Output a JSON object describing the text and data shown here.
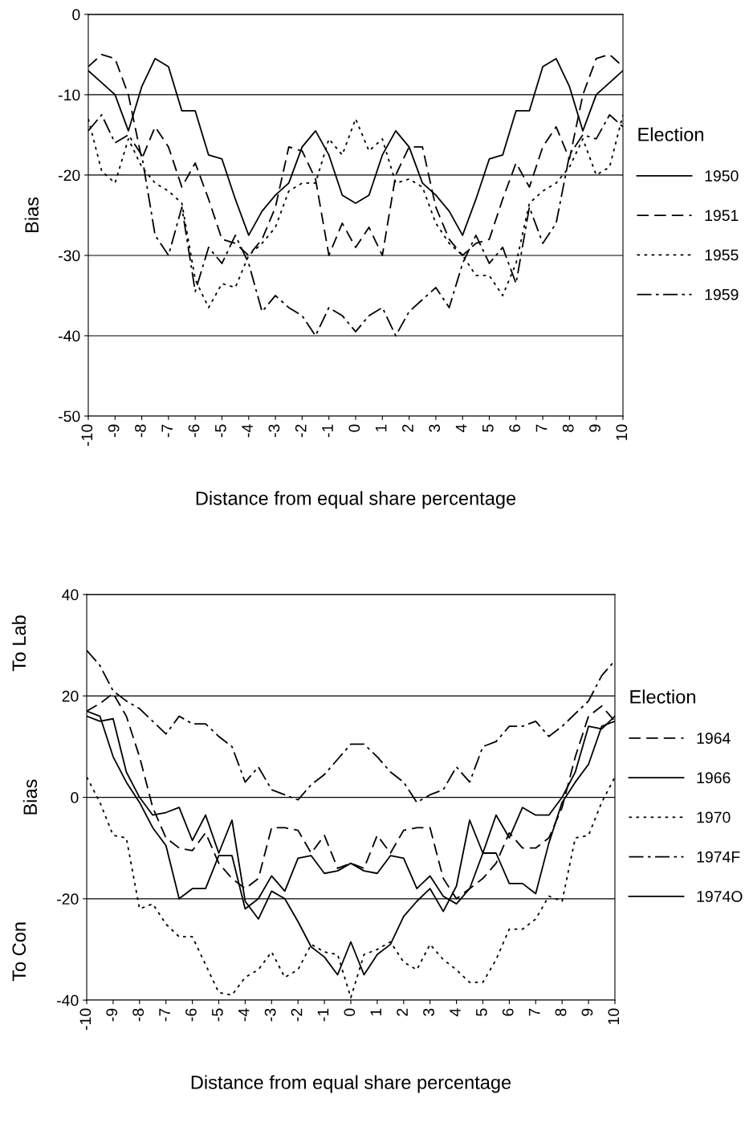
{
  "chart_data": [
    {
      "type": "line",
      "ylabel": "Bias",
      "xlabel": "Distance from equal share percentage",
      "legend_title": "Election",
      "legend": "right",
      "grid": "y",
      "x": [
        -10,
        -9.5,
        -9,
        -8.5,
        -8,
        -7.5,
        -7,
        -6.5,
        -6,
        -5.5,
        -5,
        -4.5,
        -4,
        -3.5,
        -3,
        -2.5,
        -2,
        -1.5,
        -1,
        -0.5,
        0,
        0.5,
        1,
        1.5,
        2,
        2.5,
        3,
        3.5,
        4,
        4.5,
        5,
        5.5,
        6,
        6.5,
        7,
        7.5,
        8,
        8.5,
        9,
        9.5,
        10
      ],
      "xlim": [
        -10,
        10
      ],
      "xticks": [
        -10,
        -9,
        -8,
        -7,
        -6,
        -5,
        -4,
        -3,
        -2,
        -1,
        0,
        1,
        2,
        3,
        4,
        5,
        6,
        7,
        8,
        9,
        10
      ],
      "ylim": [
        -50,
        0
      ],
      "yticks": [
        -50,
        -40,
        -30,
        -20,
        -10,
        0
      ],
      "series": [
        {
          "name": "1950",
          "color": "#000000",
          "line_style": "solid",
          "values": [
            -7,
            -8.5,
            -10,
            -14.5,
            -9,
            -5.5,
            -6.5,
            -12,
            -12,
            -17.5,
            -18,
            -23,
            -27.5,
            -24.5,
            -22.5,
            -21,
            -16.5,
            -14.5,
            -17.5,
            -22.5,
            -23.5,
            -22.5,
            -17.5,
            -14.5,
            -16.5,
            -21,
            -22.5,
            -24.5,
            -27.5,
            -23,
            -18,
            -17.5,
            -12,
            -12,
            -6.5,
            -5.5,
            -9,
            -14.5,
            -10,
            -8.5,
            -7
          ]
        },
        {
          "name": "1951",
          "color": "#000000",
          "line_style": "dashed",
          "values": [
            -6.5,
            -5,
            -5.5,
            -10,
            -18,
            -14,
            -16.5,
            -21.5,
            -18.5,
            -23,
            -28,
            -28.5,
            -30,
            -28,
            -24,
            -16.5,
            -17,
            -20.5,
            -30,
            -26,
            -29,
            -26.5,
            -30,
            -20,
            -16.5,
            -16.5,
            -24,
            -28,
            -30,
            -28.5,
            -28,
            -23,
            -18.5,
            -21.5,
            -16.5,
            -14,
            -18,
            -10,
            -5.5,
            -5,
            -6.5
          ]
        },
        {
          "name": "1955",
          "color": "#000000",
          "line_style": "dotted",
          "values": [
            -13,
            -19.5,
            -21,
            -15.5,
            -19,
            -21,
            -22,
            -23.5,
            -33,
            -36.5,
            -33.5,
            -34,
            -30,
            -28.5,
            -26.5,
            -22,
            -21,
            -21,
            -15.5,
            -17.5,
            -13,
            -17,
            -15.5,
            -21,
            -20.5,
            -21.5,
            -26,
            -28.5,
            -30,
            -32.5,
            -32.5,
            -35,
            -31,
            -23.5,
            -22,
            -21,
            -19,
            -15.5,
            -20,
            -19,
            -12.5
          ]
        },
        {
          "name": "1959",
          "color": "#000000",
          "line_style": "dashdot",
          "values": [
            -14.5,
            -12.5,
            -16,
            -15,
            -17.5,
            -27.5,
            -30,
            -24,
            -34.5,
            -29,
            -31,
            -27.5,
            -31,
            -37,
            -35,
            -36.5,
            -37.5,
            -40,
            -36.5,
            -37.5,
            -39.5,
            -37.5,
            -36.5,
            -40,
            -37,
            -35.5,
            -34,
            -36.5,
            -31,
            -27.5,
            -31,
            -29,
            -33.5,
            -24,
            -28.5,
            -26,
            -17.5,
            -15,
            -15.5,
            -12.5,
            -14
          ]
        }
      ]
    },
    {
      "type": "line",
      "ylabel": "Bias",
      "xlabel": "Distance from equal share percentage",
      "legend_title": "Election",
      "legend": "right",
      "grid": "y",
      "annotations": [
        "To Lab",
        "To Con"
      ],
      "x": [
        -10,
        -9.5,
        -9,
        -8.5,
        -8,
        -7.5,
        -7,
        -6.5,
        -6,
        -5.5,
        -5,
        -4.5,
        -4,
        -3.5,
        -3,
        -2.5,
        -2,
        -1.5,
        -1,
        -0.5,
        0,
        0.5,
        1,
        1.5,
        2,
        2.5,
        3,
        3.5,
        4,
        4.5,
        5,
        5.5,
        6,
        6.5,
        7,
        7.5,
        8,
        8.5,
        9,
        9.5,
        10
      ],
      "xlim": [
        -10,
        10
      ],
      "xticks": [
        -10,
        -9,
        -8,
        -7,
        -6,
        -5,
        -4,
        -3,
        -2,
        -1,
        0,
        1,
        2,
        3,
        4,
        5,
        6,
        7,
        8,
        9,
        10
      ],
      "ylim": [
        -40,
        40
      ],
      "yticks": [
        -40,
        -20,
        0,
        20,
        40
      ],
      "series": [
        {
          "name": "1964",
          "color": "#000000",
          "line_style": "dashed",
          "values": [
            17,
            18.5,
            20.5,
            16,
            8,
            -2,
            -8,
            -10,
            -10.5,
            -7,
            -13,
            -16,
            -18,
            -16,
            -6,
            -6,
            -6.5,
            -11,
            -7.5,
            -14,
            -13,
            -14,
            -7.5,
            -11,
            -6.5,
            -6,
            -6,
            -16,
            -20,
            -18,
            -16,
            -13,
            -7,
            -10,
            -10,
            -8,
            -2,
            8,
            16,
            18,
            15
          ]
        },
        {
          "name": "1966",
          "color": "#000000",
          "line_style": "solid",
          "values": [
            17,
            16,
            8,
            3,
            -1,
            -6,
            -9.5,
            -20,
            -18,
            -18,
            -11.5,
            -11.5,
            -22,
            -20,
            -15.5,
            -18.5,
            -12,
            -11.5,
            -15,
            -14.5,
            -13,
            -14.5,
            -15,
            -11.5,
            -12,
            -18,
            -15.5,
            -19.5,
            -21,
            -18,
            -11,
            -11,
            -17,
            -17,
            -19,
            -9,
            -1,
            3,
            6.5,
            14,
            15
          ]
        },
        {
          "name": "1970",
          "color": "#000000",
          "line_style": "dotted",
          "values": [
            4,
            -1,
            -7.5,
            -8,
            -22,
            -21,
            -25,
            -27.5,
            -27.5,
            -33,
            -38.5,
            -39,
            -35.5,
            -34,
            -30.5,
            -35.5,
            -34,
            -29,
            -30.5,
            -31,
            -39.5,
            -31,
            -30,
            -28.5,
            -32.5,
            -34,
            -29,
            -32,
            -34,
            -36.5,
            -36.5,
            -32,
            -26,
            -26,
            -24,
            -19.5,
            -20.5,
            -8,
            -7.5,
            -1,
            4
          ]
        },
        {
          "name": "1974F",
          "color": "#000000",
          "line_style": "dashdot",
          "values": [
            29,
            26,
            21,
            19,
            17.5,
            15,
            12.5,
            16,
            14.5,
            14.5,
            12,
            10,
            3,
            6,
            1.5,
            0.5,
            -0.5,
            2.5,
            4.5,
            7.5,
            10.5,
            10.5,
            8,
            5,
            3,
            -1,
            0.5,
            1.5,
            6,
            3,
            10,
            11,
            14,
            14,
            15,
            12,
            14,
            16.5,
            19,
            24,
            27
          ]
        },
        {
          "name": "1974O",
          "color": "#000000",
          "line_style": "solid",
          "values": [
            16,
            15,
            15.5,
            5,
            0,
            -3.5,
            -3,
            -2,
            -8.5,
            -3.5,
            -11,
            -4.5,
            -20.5,
            -24,
            -18.5,
            -20,
            -24.5,
            -29.5,
            -31.5,
            -35,
            -28.5,
            -35,
            -31,
            -29,
            -23.5,
            -20.5,
            -18,
            -22.5,
            -17.5,
            -4.5,
            -11,
            -3.5,
            -8,
            -2,
            -3.5,
            -3.5,
            0,
            5,
            14,
            13.5,
            16
          ]
        }
      ]
    }
  ]
}
